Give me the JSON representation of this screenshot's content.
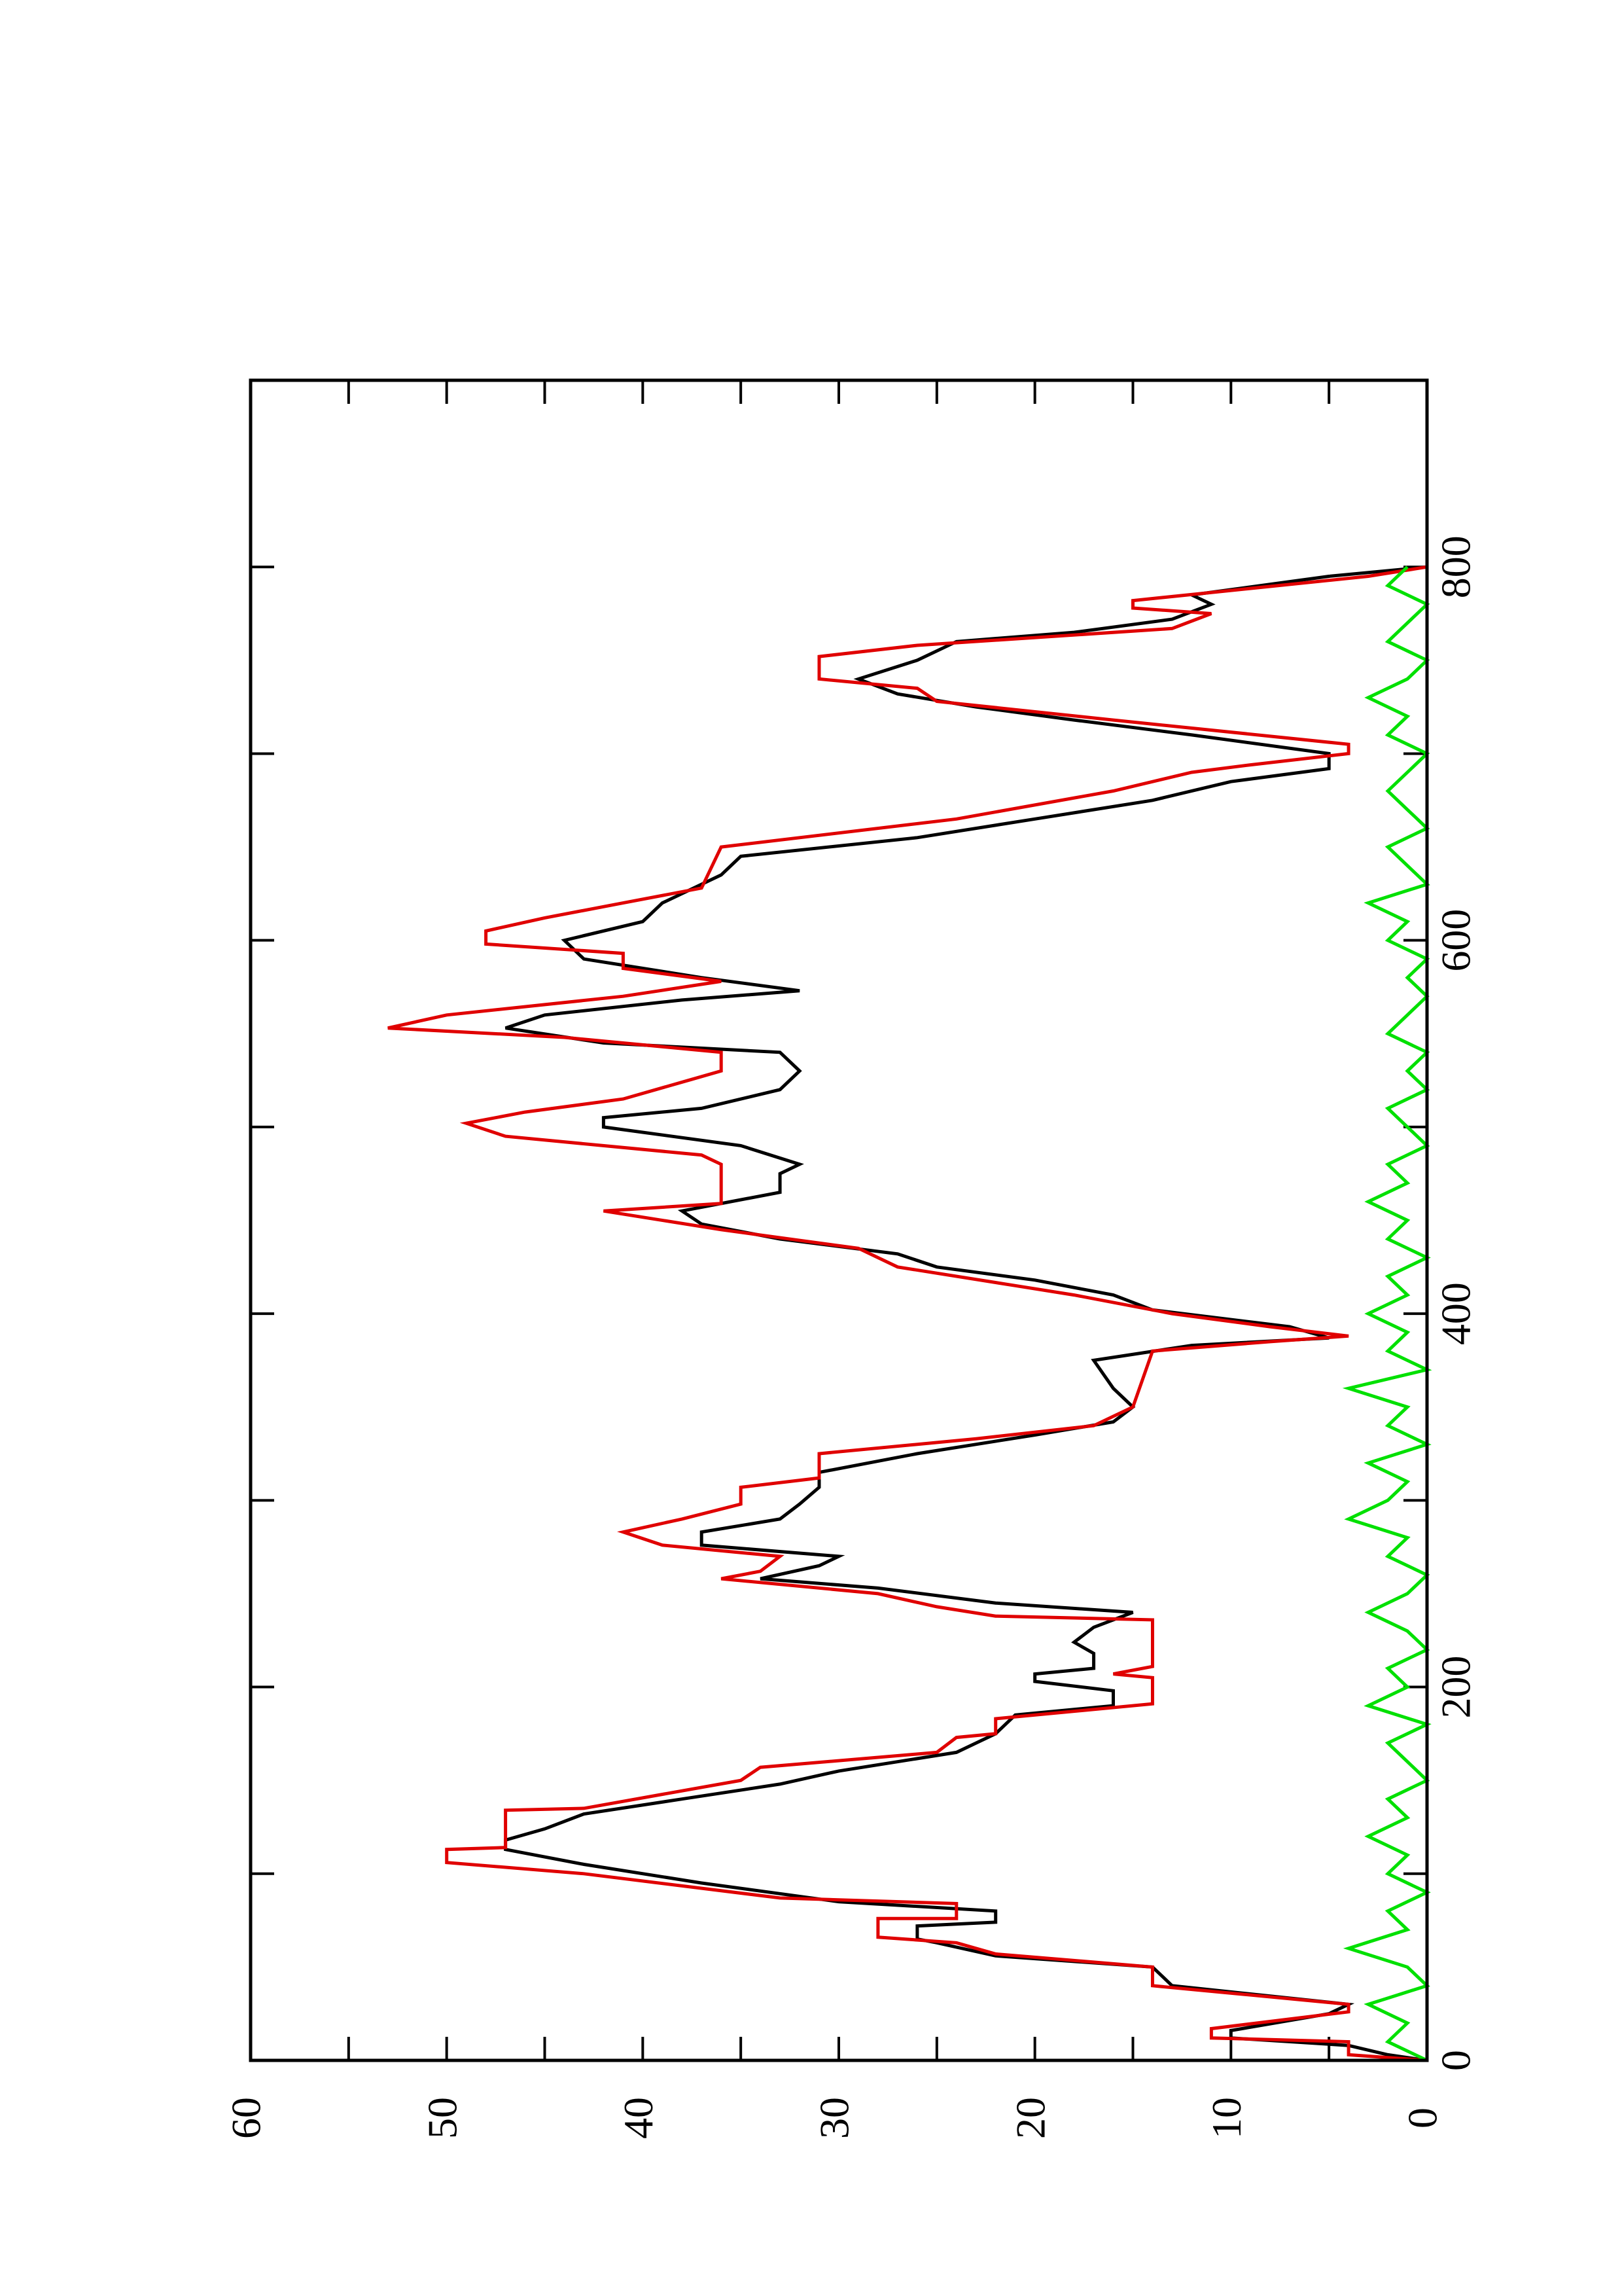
{
  "chart_data": {
    "type": "line",
    "xlim": [
      0,
      900
    ],
    "ylim": [
      0,
      60
    ],
    "xticks": [
      0,
      200,
      400,
      600,
      800
    ],
    "xminor": [
      100,
      300,
      500,
      700
    ],
    "yticks": [
      0,
      10,
      20,
      30,
      40,
      50,
      60
    ],
    "yminor": [
      5,
      15,
      25,
      35,
      45,
      55
    ],
    "series": [
      {
        "color": "#000000",
        "x": [
          0,
          3,
          8,
          12,
          16,
          25,
          30,
          40,
          50,
          56,
          63,
          65,
          72,
          74,
          80,
          85,
          95,
          105,
          113,
          118,
          124,
          132,
          140,
          148,
          155,
          165,
          175,
          185,
          190,
          198,
          203,
          207,
          210,
          218,
          224,
          232,
          240,
          245,
          253,
          258,
          265,
          270,
          276,
          283,
          290,
          298,
          307,
          315,
          325,
          335,
          342,
          350,
          360,
          375,
          383,
          387,
          393,
          402,
          410,
          418,
          425,
          432,
          440,
          448,
          455,
          465,
          475,
          480,
          490,
          500,
          505,
          510,
          520,
          530,
          540,
          545,
          553,
          560,
          568,
          573,
          580,
          590,
          600,
          610,
          620,
          635,
          645,
          655,
          665,
          675,
          685,
          692,
          700,
          710,
          718,
          725,
          732,
          740,
          750,
          760,
          765,
          772,
          780,
          785,
          795,
          800
        ],
        "values": [
          0,
          2,
          4,
          10,
          10,
          5,
          4,
          13,
          14,
          22,
          25,
          26,
          26,
          22,
          22,
          30,
          37,
          43,
          47,
          47,
          45,
          43,
          38,
          33,
          30,
          24,
          22,
          21,
          16,
          16,
          20,
          20,
          17,
          17,
          18,
          17,
          15,
          22,
          28,
          34,
          31,
          30,
          37,
          37,
          33,
          32,
          31,
          31,
          26,
          20,
          16,
          15,
          16,
          17,
          12,
          5,
          7,
          14,
          16,
          20,
          25,
          27,
          33,
          37,
          38,
          33,
          33,
          32,
          35,
          42,
          42,
          37,
          33,
          32,
          33,
          42,
          47,
          45,
          38,
          32,
          37,
          43,
          44,
          40,
          39,
          36,
          35,
          26,
          20,
          14,
          10,
          5,
          5,
          12,
          18,
          23,
          27,
          29,
          26,
          24,
          18,
          13,
          11,
          12,
          5,
          0
        ]
      },
      {
        "color": "#e00000",
        "x": [
          0,
          3,
          10,
          12,
          17,
          26,
          30,
          40,
          50,
          57,
          63,
          66,
          76,
          76,
          84,
          87,
          100,
          106,
          113,
          114,
          134,
          135,
          150,
          157,
          165,
          173,
          175,
          183,
          191,
          205,
          207,
          211,
          236,
          238,
          243,
          250,
          258,
          262,
          270,
          276,
          283,
          290,
          298,
          307,
          312,
          325,
          333,
          340,
          350,
          380,
          385,
          388,
          393,
          400,
          410,
          415,
          425,
          435,
          445,
          455,
          459,
          480,
          485,
          495,
          502,
          508,
          515,
          530,
          540,
          548,
          553,
          560,
          570,
          578,
          585,
          593,
          598,
          605,
          612,
          620,
          628,
          650,
          665,
          680,
          690,
          694,
          700,
          705,
          718,
          728,
          735,
          740,
          752,
          758,
          767,
          775,
          778,
          782,
          795,
          800
        ],
        "values": [
          0,
          4,
          4,
          11,
          11,
          4,
          4,
          14,
          14,
          22,
          24,
          28,
          28,
          24,
          24,
          33,
          43,
          50,
          50,
          47,
          47,
          43,
          35,
          34,
          25,
          24,
          22,
          22,
          14,
          14,
          16,
          14,
          14,
          22,
          25,
          28,
          36,
          34,
          33,
          39,
          41,
          38,
          35,
          35,
          31,
          31,
          23,
          17,
          15,
          14,
          8,
          4,
          8,
          13,
          18,
          21,
          27,
          29,
          36,
          42,
          36,
          36,
          37,
          47,
          49,
          46,
          41,
          36,
          36,
          44,
          53,
          50,
          41,
          36,
          41,
          41,
          48,
          48,
          45,
          41,
          37,
          36,
          24,
          16,
          12,
          9,
          4,
          4,
          16,
          25,
          26,
          31,
          31,
          26,
          13,
          11,
          15,
          15,
          3,
          0
        ]
      },
      {
        "color": "#00e000",
        "x": [
          0,
          10,
          20,
          30,
          40,
          50,
          60,
          70,
          80,
          90,
          100,
          110,
          120,
          130,
          140,
          150,
          160,
          170,
          180,
          190,
          200,
          210,
          220,
          230,
          240,
          250,
          260,
          270,
          280,
          290,
          300,
          310,
          320,
          330,
          340,
          350,
          360,
          370,
          380,
          390,
          400,
          410,
          420,
          430,
          440,
          450,
          460,
          470,
          480,
          490,
          500,
          510,
          520,
          530,
          540,
          550,
          560,
          570,
          580,
          590,
          600,
          610,
          620,
          630,
          640,
          650,
          660,
          670,
          680,
          690,
          700,
          710,
          720,
          730,
          740,
          750,
          760,
          770,
          780,
          790,
          800
        ],
        "values": [
          0,
          2,
          1,
          3,
          0,
          1,
          4,
          1,
          2,
          0,
          2,
          1,
          3,
          1,
          2,
          0,
          1,
          2,
          0,
          3,
          1,
          2,
          0,
          1,
          3,
          1,
          0,
          2,
          1,
          4,
          2,
          1,
          3,
          0,
          2,
          1,
          4,
          0,
          2,
          1,
          3,
          1,
          2,
          0,
          2,
          1,
          3,
          1,
          2,
          0,
          1,
          2,
          0,
          1,
          0,
          2,
          1,
          0,
          1,
          0,
          2,
          1,
          3,
          0,
          1,
          2,
          0,
          1,
          2,
          1,
          0,
          2,
          1,
          3,
          1,
          0,
          2,
          1,
          0,
          2,
          1
        ]
      }
    ]
  }
}
